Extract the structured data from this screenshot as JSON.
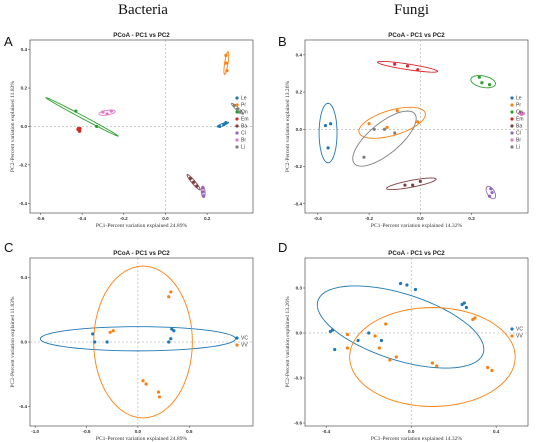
{
  "columns": {
    "left": "Bacteria",
    "right": "Fungi"
  },
  "colors": {
    "Le": "#1f77b4",
    "Pr": "#ff7f0e",
    "On": "#2ca02c",
    "Em": "#d62728",
    "Ba": "#7f3f3f",
    "Cl": "#9467bd",
    "Br": "#e377c2",
    "Li": "#7f7f7f",
    "VC": "#1f77b4",
    "VV": "#ff7f0e"
  },
  "chart_data": [
    {
      "letter": "A",
      "type": "scatter",
      "title": "PCoA - PC1 vs PC2",
      "xlabel": "PC1-Percent variation explained 24.89%",
      "ylabel": "PC2-Percent variation explained 11.83%",
      "xlim": [
        -0.65,
        0.42
      ],
      "ylim": [
        -0.45,
        0.45
      ],
      "xticks": [
        -0.6,
        -0.4,
        -0.2,
        0.0,
        0.2
      ],
      "yticks": [
        -0.4,
        -0.2,
        0.0,
        0.2,
        0.4
      ],
      "xtick_labels": [
        "-0.6",
        "-0.4",
        "-0.2",
        "0.0",
        "0.2"
      ],
      "ytick_labels": [
        "-0.4",
        "-0.2",
        "0.0",
        "0.2",
        "0.4"
      ],
      "legend": [
        "Le",
        "Pr",
        "On",
        "Em",
        "Ba",
        "Cl",
        "Br",
        "Li"
      ],
      "series": [
        {
          "name": "Le",
          "points": [
            [
              0.26,
              0.0
            ],
            [
              0.28,
              0.01
            ],
            [
              0.29,
              0.02
            ]
          ],
          "ellipse": {
            "cx": 0.275,
            "cy": 0.01,
            "rx": 0.03,
            "ry": 0.006,
            "angle": 22
          }
        },
        {
          "name": "Pr",
          "points": [
            [
              0.29,
              0.37
            ],
            [
              0.292,
              0.33
            ],
            [
              0.295,
              0.29
            ]
          ],
          "ellipse": {
            "cx": 0.292,
            "cy": 0.33,
            "rx": 0.06,
            "ry": 0.008,
            "angle": 82
          }
        },
        {
          "name": "On",
          "points": [
            [
              -0.43,
              0.08
            ],
            [
              -0.33,
              0.0
            ]
          ],
          "ellipse": {
            "cx": -0.4,
            "cy": 0.05,
            "rx": 0.2,
            "ry": 0.007,
            "angle": -30
          }
        },
        {
          "name": "Em",
          "points": [
            [
              -0.42,
              -0.015
            ],
            [
              -0.413,
              -0.025
            ],
            [
              -0.41,
              -0.01
            ]
          ],
          "ellipse": {
            "cx": -0.414,
            "cy": -0.016,
            "rx": 0.014,
            "ry": 0.005,
            "angle": -60
          }
        },
        {
          "name": "Ba",
          "points": [
            [
              0.12,
              -0.27
            ],
            [
              0.135,
              -0.29
            ],
            [
              0.15,
              -0.31
            ]
          ],
          "ellipse": {
            "cx": 0.135,
            "cy": -0.29,
            "rx": 0.05,
            "ry": 0.008,
            "angle": -52
          }
        },
        {
          "name": "Cl",
          "points": [
            [
              0.18,
              -0.32
            ],
            [
              0.18,
              -0.34
            ],
            [
              0.182,
              -0.36
            ]
          ],
          "ellipse": {
            "cx": 0.181,
            "cy": -0.34,
            "rx": 0.03,
            "ry": 0.009,
            "angle": -85
          }
        },
        {
          "name": "Br",
          "points": [
            [
              -0.3,
              0.075
            ],
            [
              -0.28,
              0.065
            ],
            [
              -0.26,
              0.08
            ]
          ],
          "ellipse": {
            "cx": -0.28,
            "cy": 0.072,
            "rx": 0.04,
            "ry": 0.012,
            "angle": 10
          }
        },
        {
          "name": "Li",
          "points": [
            [
              0.33,
              0.11
            ],
            [
              0.345,
              0.09
            ],
            [
              0.355,
              0.075
            ]
          ],
          "ellipse": {
            "cx": 0.345,
            "cy": 0.092,
            "rx": 0.04,
            "ry": 0.007,
            "angle": -45
          }
        }
      ]
    },
    {
      "letter": "B",
      "type": "scatter",
      "title": "PCoA - PC1 vs PC2",
      "xlabel": "PC1-Percent variation explained 14.32%",
      "ylabel": "PC2-Percent variation explained 13.26%",
      "xlim": [
        -0.45,
        0.42
      ],
      "ylim": [
        -0.45,
        0.48
      ],
      "xticks": [
        -0.4,
        -0.2,
        0.0,
        0.2
      ],
      "yticks": [
        -0.4,
        -0.2,
        0.0,
        0.2,
        0.4
      ],
      "xtick_labels": [
        "-0.4",
        "-0.2",
        "0.0",
        "0.2"
      ],
      "ytick_labels": [
        "-0.4",
        "-0.2",
        "0.0",
        "0.2",
        "0.4"
      ],
      "legend": [
        "Le",
        "Pr",
        "On",
        "Em",
        "Ba",
        "Cl",
        "Br",
        "Li"
      ],
      "series": [
        {
          "name": "Le",
          "points": [
            [
              -0.37,
              0.02
            ],
            [
              -0.35,
              0.03
            ],
            [
              -0.36,
              -0.1
            ]
          ],
          "ellipse": {
            "cx": -0.36,
            "cy": -0.02,
            "rx": 0.16,
            "ry": 0.035,
            "angle": 90
          }
        },
        {
          "name": "Pr",
          "points": [
            [
              -0.2,
              0.03
            ],
            [
              -0.09,
              0.1
            ],
            [
              -0.01,
              0.04
            ],
            [
              -0.13,
              0.01
            ]
          ],
          "ellipse": {
            "cx": -0.11,
            "cy": 0.035,
            "rx": 0.14,
            "ry": 0.065,
            "angle": 25
          }
        },
        {
          "name": "On",
          "points": [
            [
              0.23,
              0.28
            ],
            [
              0.24,
              0.25
            ],
            [
              0.27,
              0.24
            ]
          ],
          "ellipse": {
            "cx": 0.245,
            "cy": 0.256,
            "rx": 0.05,
            "ry": 0.03,
            "angle": -20
          }
        },
        {
          "name": "Em",
          "points": [
            [
              -0.1,
              0.35
            ],
            [
              -0.05,
              0.34
            ],
            [
              -0.01,
              0.32
            ]
          ],
          "ellipse": {
            "cx": -0.05,
            "cy": 0.336,
            "rx": 0.12,
            "ry": 0.015,
            "angle": -12
          }
        },
        {
          "name": "Ba",
          "points": [
            [
              -0.06,
              -0.3
            ],
            [
              -0.03,
              -0.3
            ],
            [
              0.0,
              -0.28
            ]
          ],
          "ellipse": {
            "cx": -0.035,
            "cy": -0.293,
            "rx": 0.1,
            "ry": 0.018,
            "angle": 15
          }
        },
        {
          "name": "Cl",
          "points": [
            [
              0.275,
              -0.32
            ],
            [
              0.28,
              -0.34
            ],
            [
              0.27,
              -0.36
            ]
          ],
          "ellipse": {
            "cx": 0.275,
            "cy": -0.34,
            "rx": 0.035,
            "ry": 0.015,
            "angle": -70
          }
        },
        {
          "name": "Br",
          "points": [
            [
              0.39,
              0.09
            ],
            [
              0.4,
              0.085
            ],
            [
              0.395,
              0.08
            ]
          ],
          "ellipse": {
            "cx": 0.395,
            "cy": 0.085,
            "rx": 0.012,
            "ry": 0.008,
            "angle": 0
          }
        },
        {
          "name": "Li",
          "points": [
            [
              -0.22,
              -0.15
            ],
            [
              -0.18,
              0.0
            ],
            [
              -0.14,
              0.0
            ],
            [
              -0.1,
              -0.02
            ]
          ],
          "ellipse": {
            "cx": -0.14,
            "cy": -0.05,
            "rx": 0.18,
            "ry": 0.07,
            "angle": 52
          }
        }
      ]
    },
    {
      "letter": "C",
      "type": "scatter",
      "title": "PCoA - PC1 vs PC2",
      "xlabel": "PC1-Percent variation explained 24.89%",
      "ylabel": "PC2-Percent variation explained 11.83%",
      "xlim": [
        -1.05,
        1.12
      ],
      "ylim": [
        -0.52,
        0.52
      ],
      "xticks": [
        -1.0,
        -0.5,
        0.0,
        0.5
      ],
      "yticks": [
        -0.4,
        0.0,
        0.4
      ],
      "xtick_labels": [
        "-1.0",
        "-0.5",
        "0.0",
        "0.5"
      ],
      "ytick_labels": [
        "-0.4",
        "0.0",
        "0.4"
      ],
      "legend": [
        "VC",
        "VV"
      ],
      "series": [
        {
          "name": "VC",
          "points": [
            [
              -0.44,
              0.05
            ],
            [
              -0.42,
              0.0
            ],
            [
              -0.3,
              0.0
            ],
            [
              0.3,
              0.0
            ],
            [
              0.32,
              0.02
            ],
            [
              0.33,
              0.08
            ],
            [
              0.35,
              0.07
            ]
          ],
          "ellipse": {
            "cx": 0.0,
            "cy": 0.02,
            "rx": 0.95,
            "ry": 0.075,
            "angle": 0
          }
        },
        {
          "name": "VV",
          "points": [
            [
              -0.27,
              0.06
            ],
            [
              -0.24,
              0.07
            ],
            [
              0.3,
              0.28
            ],
            [
              0.32,
              0.31
            ],
            [
              0.05,
              -0.24
            ],
            [
              0.08,
              -0.26
            ],
            [
              0.2,
              -0.31
            ],
            [
              0.21,
              -0.34
            ]
          ],
          "ellipse": {
            "cx": 0.05,
            "cy": 0.0,
            "rx": 0.48,
            "ry": 0.47,
            "angle": 0
          }
        }
      ]
    },
    {
      "letter": "D",
      "type": "scatter",
      "title": "PCoA - PC1 vs PC2",
      "xlabel": "PC1-Percent variation explained 14.32%",
      "ylabel": "PC2-Percent variation explained 13.26%",
      "xlim": [
        -0.5,
        0.55
      ],
      "ylim": [
        -0.62,
        0.5
      ],
      "xticks": [
        -0.4,
        0.0,
        0.4
      ],
      "yticks": [
        -0.6,
        -0.3,
        0.0,
        0.3,
        0.6
      ],
      "xtick_labels": [
        "-0.4",
        "0.0",
        "0.4"
      ],
      "ytick_labels": [
        "-0.6",
        "-0.3",
        "0.0",
        "0.3",
        "0.6"
      ],
      "legend": [
        "VC",
        "VV"
      ],
      "series": [
        {
          "name": "VC",
          "points": [
            [
              -0.38,
              0.01
            ],
            [
              -0.37,
              0.02
            ],
            [
              -0.36,
              -0.11
            ],
            [
              -0.25,
              -0.05
            ],
            [
              -0.2,
              0.0
            ],
            [
              -0.14,
              -0.05
            ],
            [
              -0.05,
              0.33
            ],
            [
              -0.02,
              0.32
            ],
            [
              0.02,
              0.29
            ],
            [
              0.24,
              0.19
            ],
            [
              0.25,
              0.2
            ],
            [
              0.26,
              0.17
            ]
          ],
          "ellipse": {
            "cx": -0.05,
            "cy": 0.04,
            "rx": 0.43,
            "ry": 0.21,
            "angle": -28
          }
        },
        {
          "name": "VV",
          "points": [
            [
              -0.3,
              -0.01
            ],
            [
              -0.3,
              -0.1
            ],
            [
              -0.17,
              -0.02
            ],
            [
              -0.15,
              -0.1
            ],
            [
              -0.12,
              0.06
            ],
            [
              -0.1,
              -0.18
            ],
            [
              -0.07,
              -0.16
            ],
            [
              0.1,
              -0.2
            ],
            [
              0.12,
              -0.22
            ],
            [
              0.3,
              0.1
            ],
            [
              0.29,
              0.09
            ],
            [
              0.36,
              -0.23
            ],
            [
              0.38,
              -0.25
            ]
          ],
          "ellipse": {
            "cx": 0.1,
            "cy": -0.16,
            "rx": 0.39,
            "ry": 0.33,
            "angle": 0
          }
        }
      ]
    }
  ]
}
